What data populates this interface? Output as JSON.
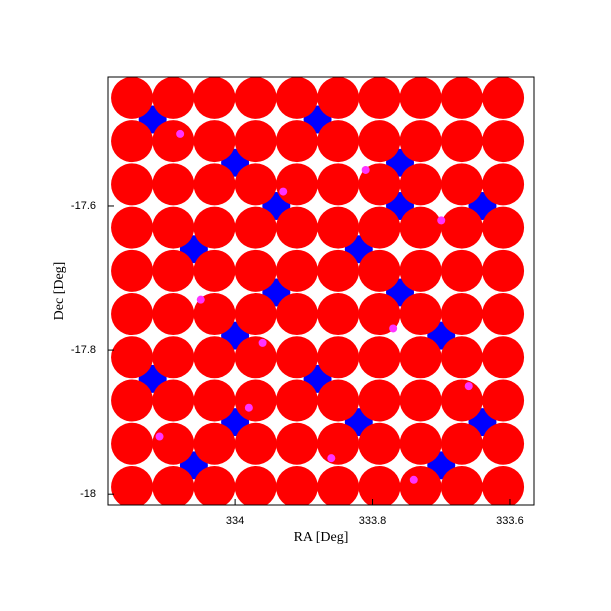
{
  "chart_data": {
    "type": "scatter",
    "xlabel": "RA [Deg]",
    "ylabel": "Dec [Deg]",
    "xlim": [
      334.185,
      333.565
    ],
    "ylim": [
      -18.015,
      -17.421
    ],
    "xticks": [
      334,
      333.8,
      333.6
    ],
    "yticks": [
      -17.6,
      -17.8,
      -18
    ],
    "series": [
      {
        "color": "#0000ff",
        "marker_size": 14,
        "x": [
          334.12,
          334.0,
          333.88,
          333.76,
          333.64,
          334.06,
          333.94,
          333.82,
          333.7,
          334.12,
          334.0,
          333.88,
          333.76,
          333.64,
          334.06,
          333.94,
          333.82,
          333.7,
          334.0,
          333.76
        ],
        "y": [
          -17.48,
          -17.54,
          -17.48,
          -17.54,
          -17.6,
          -17.66,
          -17.72,
          -17.66,
          -17.78,
          -17.84,
          -17.9,
          -17.84,
          -17.72,
          -17.9,
          -17.96,
          -17.6,
          -17.9,
          -17.96,
          -17.78,
          -17.6
        ]
      },
      {
        "color": "#ff0000",
        "marker_size": 21,
        "x": [
          334.15,
          334.09,
          334.03,
          333.97,
          333.91,
          333.85,
          333.79,
          333.73,
          333.67,
          333.61,
          334.15,
          334.09,
          334.03,
          333.97,
          333.91,
          333.85,
          333.79,
          333.73,
          333.67,
          333.61,
          334.15,
          334.09,
          334.03,
          333.97,
          333.91,
          333.85,
          333.79,
          333.73,
          333.67,
          333.61,
          334.15,
          334.09,
          334.03,
          333.97,
          333.91,
          333.85,
          333.79,
          333.73,
          333.67,
          333.61,
          334.15,
          334.09,
          334.03,
          333.97,
          333.91,
          333.85,
          333.79,
          333.73,
          333.67,
          333.61,
          334.15,
          334.09,
          334.03,
          333.97,
          333.91,
          333.85,
          333.79,
          333.73,
          333.67,
          333.61,
          334.15,
          334.09,
          334.03,
          333.97,
          333.91,
          333.85,
          333.79,
          333.73,
          333.67,
          333.61,
          334.15,
          334.09,
          334.03,
          333.97,
          333.91,
          333.85,
          333.79,
          333.73,
          333.67,
          333.61,
          334.15,
          334.09,
          334.03,
          333.97,
          333.91,
          333.85,
          333.79,
          333.73,
          333.67,
          333.61,
          334.15,
          334.09,
          334.03,
          333.97,
          333.91,
          333.85,
          333.79,
          333.73,
          333.67,
          333.61
        ],
        "y": [
          -17.45,
          -17.45,
          -17.45,
          -17.45,
          -17.45,
          -17.45,
          -17.45,
          -17.45,
          -17.45,
          -17.45,
          -17.51,
          -17.51,
          -17.51,
          -17.51,
          -17.51,
          -17.51,
          -17.51,
          -17.51,
          -17.51,
          -17.51,
          -17.57,
          -17.57,
          -17.57,
          -17.57,
          -17.57,
          -17.57,
          -17.57,
          -17.57,
          -17.57,
          -17.57,
          -17.63,
          -17.63,
          -17.63,
          -17.63,
          -17.63,
          -17.63,
          -17.63,
          -17.63,
          -17.63,
          -17.63,
          -17.69,
          -17.69,
          -17.69,
          -17.69,
          -17.69,
          -17.69,
          -17.69,
          -17.69,
          -17.69,
          -17.69,
          -17.75,
          -17.75,
          -17.75,
          -17.75,
          -17.75,
          -17.75,
          -17.75,
          -17.75,
          -17.75,
          -17.75,
          -17.81,
          -17.81,
          -17.81,
          -17.81,
          -17.81,
          -17.81,
          -17.81,
          -17.81,
          -17.81,
          -17.81,
          -17.87,
          -17.87,
          -17.87,
          -17.87,
          -17.87,
          -17.87,
          -17.87,
          -17.87,
          -17.87,
          -17.87,
          -17.93,
          -17.93,
          -17.93,
          -17.93,
          -17.93,
          -17.93,
          -17.93,
          -17.93,
          -17.93,
          -17.93,
          -17.99,
          -17.99,
          -17.99,
          -17.99,
          -17.99,
          -17.99,
          -17.99,
          -17.99,
          -17.99,
          -17.99
        ]
      },
      {
        "color": "#ff33ff",
        "marker_size": 4,
        "x": [
          334.08,
          333.93,
          333.81,
          333.7,
          334.05,
          333.96,
          333.77,
          333.66,
          334.11,
          333.86,
          333.74,
          333.98
        ],
        "y": [
          -17.5,
          -17.58,
          -17.55,
          -17.62,
          -17.73,
          -17.79,
          -17.77,
          -17.85,
          -17.92,
          -17.95,
          -17.98,
          -17.88
        ]
      }
    ]
  }
}
